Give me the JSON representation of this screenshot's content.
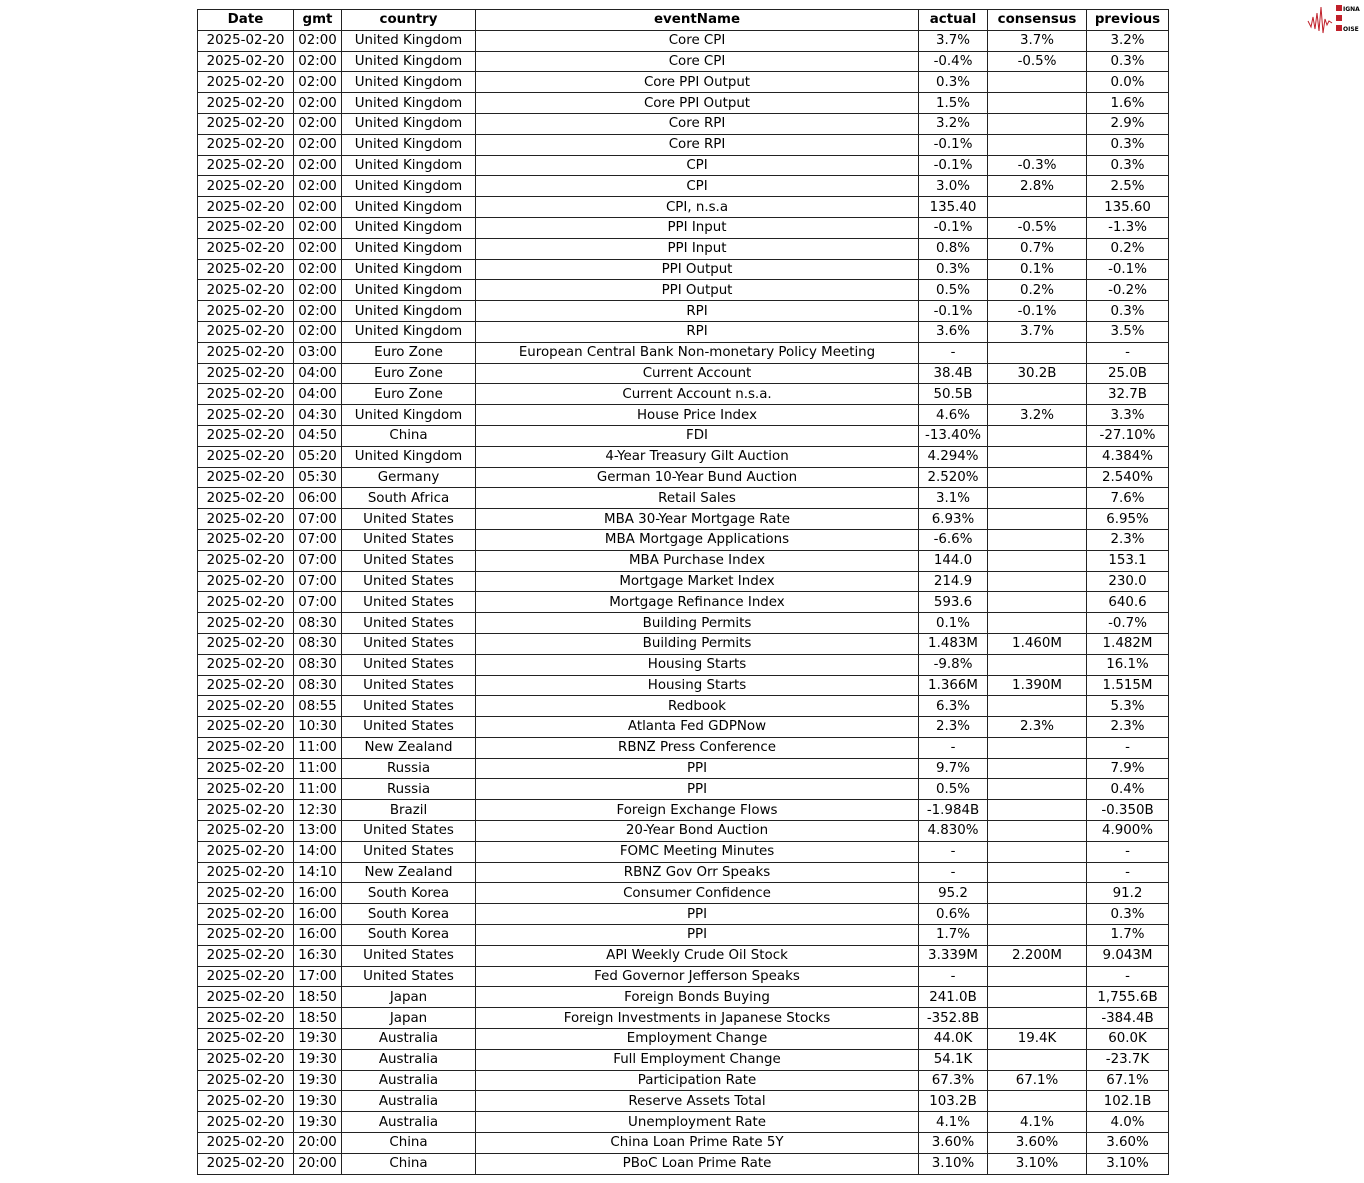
{
  "logo": {
    "text": [
      "SIGNAL",
      "2",
      "NOISE"
    ],
    "color": "#c0202a"
  },
  "table": {
    "columns": [
      "Date",
      "gmt",
      "country",
      "eventName",
      "actual",
      "consensus",
      "previous"
    ],
    "rows": [
      [
        "2025-02-20",
        "02:00",
        "United Kingdom",
        "Core CPI",
        "3.7%",
        "3.7%",
        "3.2%"
      ],
      [
        "2025-02-20",
        "02:00",
        "United Kingdom",
        "Core CPI",
        "-0.4%",
        "-0.5%",
        "0.3%"
      ],
      [
        "2025-02-20",
        "02:00",
        "United Kingdom",
        "Core PPI Output",
        "0.3%",
        "",
        "0.0%"
      ],
      [
        "2025-02-20",
        "02:00",
        "United Kingdom",
        "Core PPI Output",
        "1.5%",
        "",
        "1.6%"
      ],
      [
        "2025-02-20",
        "02:00",
        "United Kingdom",
        "Core RPI",
        "3.2%",
        "",
        "2.9%"
      ],
      [
        "2025-02-20",
        "02:00",
        "United Kingdom",
        "Core RPI",
        "-0.1%",
        "",
        "0.3%"
      ],
      [
        "2025-02-20",
        "02:00",
        "United Kingdom",
        "CPI",
        "-0.1%",
        "-0.3%",
        "0.3%"
      ],
      [
        "2025-02-20",
        "02:00",
        "United Kingdom",
        "CPI",
        "3.0%",
        "2.8%",
        "2.5%"
      ],
      [
        "2025-02-20",
        "02:00",
        "United Kingdom",
        "CPI, n.s.a",
        "135.40",
        "",
        "135.60"
      ],
      [
        "2025-02-20",
        "02:00",
        "United Kingdom",
        "PPI Input",
        "-0.1%",
        "-0.5%",
        "-1.3%"
      ],
      [
        "2025-02-20",
        "02:00",
        "United Kingdom",
        "PPI Input",
        "0.8%",
        "0.7%",
        "0.2%"
      ],
      [
        "2025-02-20",
        "02:00",
        "United Kingdom",
        "PPI Output",
        "0.3%",
        "0.1%",
        "-0.1%"
      ],
      [
        "2025-02-20",
        "02:00",
        "United Kingdom",
        "PPI Output",
        "0.5%",
        "0.2%",
        "-0.2%"
      ],
      [
        "2025-02-20",
        "02:00",
        "United Kingdom",
        "RPI",
        "-0.1%",
        "-0.1%",
        "0.3%"
      ],
      [
        "2025-02-20",
        "02:00",
        "United Kingdom",
        "RPI",
        "3.6%",
        "3.7%",
        "3.5%"
      ],
      [
        "2025-02-20",
        "03:00",
        "Euro Zone",
        "European Central Bank Non-monetary Policy Meeting",
        "-",
        "",
        "-"
      ],
      [
        "2025-02-20",
        "04:00",
        "Euro Zone",
        "Current Account",
        "38.4B",
        "30.2B",
        "25.0B"
      ],
      [
        "2025-02-20",
        "04:00",
        "Euro Zone",
        "Current Account n.s.a.",
        "50.5B",
        "",
        "32.7B"
      ],
      [
        "2025-02-20",
        "04:30",
        "United Kingdom",
        "House Price Index",
        "4.6%",
        "3.2%",
        "3.3%"
      ],
      [
        "2025-02-20",
        "04:50",
        "China",
        "FDI",
        "-13.40%",
        "",
        "-27.10%"
      ],
      [
        "2025-02-20",
        "05:20",
        "United Kingdom",
        "4-Year Treasury Gilt Auction",
        "4.294%",
        "",
        "4.384%"
      ],
      [
        "2025-02-20",
        "05:30",
        "Germany",
        "German 10-Year Bund Auction",
        "2.520%",
        "",
        "2.540%"
      ],
      [
        "2025-02-20",
        "06:00",
        "South Africa",
        "Retail Sales",
        "3.1%",
        "",
        "7.6%"
      ],
      [
        "2025-02-20",
        "07:00",
        "United States",
        "MBA 30-Year Mortgage Rate",
        "6.93%",
        "",
        "6.95%"
      ],
      [
        "2025-02-20",
        "07:00",
        "United States",
        "MBA Mortgage Applications",
        "-6.6%",
        "",
        "2.3%"
      ],
      [
        "2025-02-20",
        "07:00",
        "United States",
        "MBA Purchase Index",
        "144.0",
        "",
        "153.1"
      ],
      [
        "2025-02-20",
        "07:00",
        "United States",
        "Mortgage Market Index",
        "214.9",
        "",
        "230.0"
      ],
      [
        "2025-02-20",
        "07:00",
        "United States",
        "Mortgage Refinance Index",
        "593.6",
        "",
        "640.6"
      ],
      [
        "2025-02-20",
        "08:30",
        "United States",
        "Building Permits",
        "0.1%",
        "",
        "-0.7%"
      ],
      [
        "2025-02-20",
        "08:30",
        "United States",
        "Building Permits",
        "1.483M",
        "1.460M",
        "1.482M"
      ],
      [
        "2025-02-20",
        "08:30",
        "United States",
        "Housing Starts",
        "-9.8%",
        "",
        "16.1%"
      ],
      [
        "2025-02-20",
        "08:30",
        "United States",
        "Housing Starts",
        "1.366M",
        "1.390M",
        "1.515M"
      ],
      [
        "2025-02-20",
        "08:55",
        "United States",
        "Redbook",
        "6.3%",
        "",
        "5.3%"
      ],
      [
        "2025-02-20",
        "10:30",
        "United States",
        "Atlanta Fed GDPNow",
        "2.3%",
        "2.3%",
        "2.3%"
      ],
      [
        "2025-02-20",
        "11:00",
        "New Zealand",
        "RBNZ Press Conference",
        "-",
        "",
        "-"
      ],
      [
        "2025-02-20",
        "11:00",
        "Russia",
        "PPI",
        "9.7%",
        "",
        "7.9%"
      ],
      [
        "2025-02-20",
        "11:00",
        "Russia",
        "PPI",
        "0.5%",
        "",
        "0.4%"
      ],
      [
        "2025-02-20",
        "12:30",
        "Brazil",
        "Foreign Exchange Flows",
        "-1.984B",
        "",
        "-0.350B"
      ],
      [
        "2025-02-20",
        "13:00",
        "United States",
        "20-Year Bond Auction",
        "4.830%",
        "",
        "4.900%"
      ],
      [
        "2025-02-20",
        "14:00",
        "United States",
        "FOMC Meeting Minutes",
        "-",
        "",
        "-"
      ],
      [
        "2025-02-20",
        "14:10",
        "New Zealand",
        "RBNZ Gov Orr Speaks",
        "-",
        "",
        "-"
      ],
      [
        "2025-02-20",
        "16:00",
        "South Korea",
        "Consumer Confidence",
        "95.2",
        "",
        "91.2"
      ],
      [
        "2025-02-20",
        "16:00",
        "South Korea",
        "PPI",
        "0.6%",
        "",
        "0.3%"
      ],
      [
        "2025-02-20",
        "16:00",
        "South Korea",
        "PPI",
        "1.7%",
        "",
        "1.7%"
      ],
      [
        "2025-02-20",
        "16:30",
        "United States",
        "API Weekly Crude Oil Stock",
        "3.339M",
        "2.200M",
        "9.043M"
      ],
      [
        "2025-02-20",
        "17:00",
        "United States",
        "Fed Governor Jefferson Speaks",
        "-",
        "",
        "-"
      ],
      [
        "2025-02-20",
        "18:50",
        "Japan",
        "Foreign Bonds Buying",
        "241.0B",
        "",
        "1,755.6B"
      ],
      [
        "2025-02-20",
        "18:50",
        "Japan",
        "Foreign Investments in Japanese Stocks",
        "-352.8B",
        "",
        "-384.4B"
      ],
      [
        "2025-02-20",
        "19:30",
        "Australia",
        "Employment Change",
        "44.0K",
        "19.4K",
        "60.0K"
      ],
      [
        "2025-02-20",
        "19:30",
        "Australia",
        "Full Employment Change",
        "54.1K",
        "",
        "-23.7K"
      ],
      [
        "2025-02-20",
        "19:30",
        "Australia",
        "Participation Rate",
        "67.3%",
        "67.1%",
        "67.1%"
      ],
      [
        "2025-02-20",
        "19:30",
        "Australia",
        "Reserve Assets Total",
        "103.2B",
        "",
        "102.1B"
      ],
      [
        "2025-02-20",
        "19:30",
        "Australia",
        "Unemployment Rate",
        "4.1%",
        "4.1%",
        "4.0%"
      ],
      [
        "2025-02-20",
        "20:00",
        "China",
        "China Loan Prime Rate 5Y",
        "3.60%",
        "3.60%",
        "3.60%"
      ],
      [
        "2025-02-20",
        "20:00",
        "China",
        "PBoC Loan Prime Rate",
        "3.10%",
        "3.10%",
        "3.10%"
      ]
    ]
  }
}
